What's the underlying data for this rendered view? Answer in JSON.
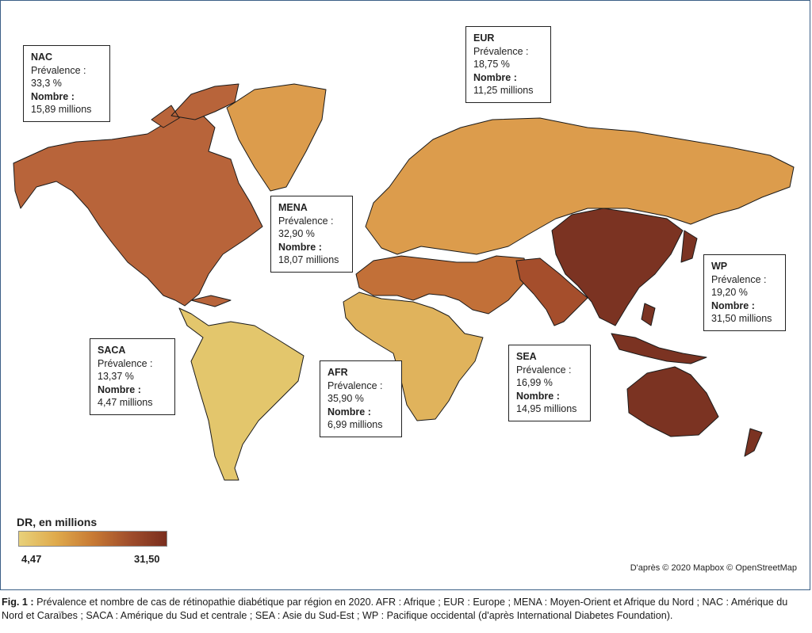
{
  "legend": {
    "title": "DR, en millions",
    "min_label": "4,47",
    "max_label": "31,50",
    "min_value": 4.47,
    "max_value": 31.5,
    "colors": [
      "#e8d17a",
      "#dfaa4c",
      "#c87a34",
      "#a04e2c",
      "#7a2e1e"
    ]
  },
  "callouts": {
    "nac": {
      "code": "NAC",
      "prev_label": "Prévalence :",
      "prev": "33,3 %",
      "count_label": "Nombre :",
      "count": "15,89 millions"
    },
    "eur": {
      "code": "EUR",
      "prev_label": "Prévalence :",
      "prev": "18,75 %",
      "count_label": "Nombre :",
      "count": "11,25 millions"
    },
    "mena": {
      "code": "MENA",
      "prev_label": "Prévalence :",
      "prev": "32,90 %",
      "count_label": "Nombre :",
      "count": "18,07 millions"
    },
    "wp": {
      "code": "WP",
      "prev_label": "Prévalence :",
      "prev": "19,20 %",
      "count_label": "Nombre :",
      "count": "31,50 millions"
    },
    "saca": {
      "code": "SACA",
      "prev_label": "Prévalence :",
      "prev": "13,37 %",
      "count_label": "Nombre :",
      "count": "4,47 millions"
    },
    "afr": {
      "code": "AFR",
      "prev_label": "Prévalence :",
      "prev": "35,90 %",
      "count_label": "Nombre :",
      "count": "6,99 millions"
    },
    "sea": {
      "code": "SEA",
      "prev_label": "Prévalence :",
      "prev": "16,99 %",
      "count_label": "Nombre :",
      "count": "14,95 millions"
    }
  },
  "region_colors": {
    "nac": "#b8643a",
    "eur": "#dc9c4c",
    "mena": "#c27038",
    "wp": "#7b3322",
    "saca": "#e3c66c",
    "afr": "#e0b35c",
    "sea": "#a54e2c"
  },
  "credit": "D'après © 2020 Mapbox © OpenStreetMap",
  "caption": {
    "fig": "Fig. 1 :",
    "text": " Prévalence et nombre de cas de rétinopathie diabétique par région en 2020. AFR : Afrique ; EUR : Europe ; MENA : Moyen-Orient et Afrique du Nord ; NAC : Amérique du Nord et Caraïbes ; SACA : Amérique du Sud et centrale ; SEA : Asie du Sud-Est ; WP : Pacifique occidental (d'après International Diabetes Foundation)."
  }
}
